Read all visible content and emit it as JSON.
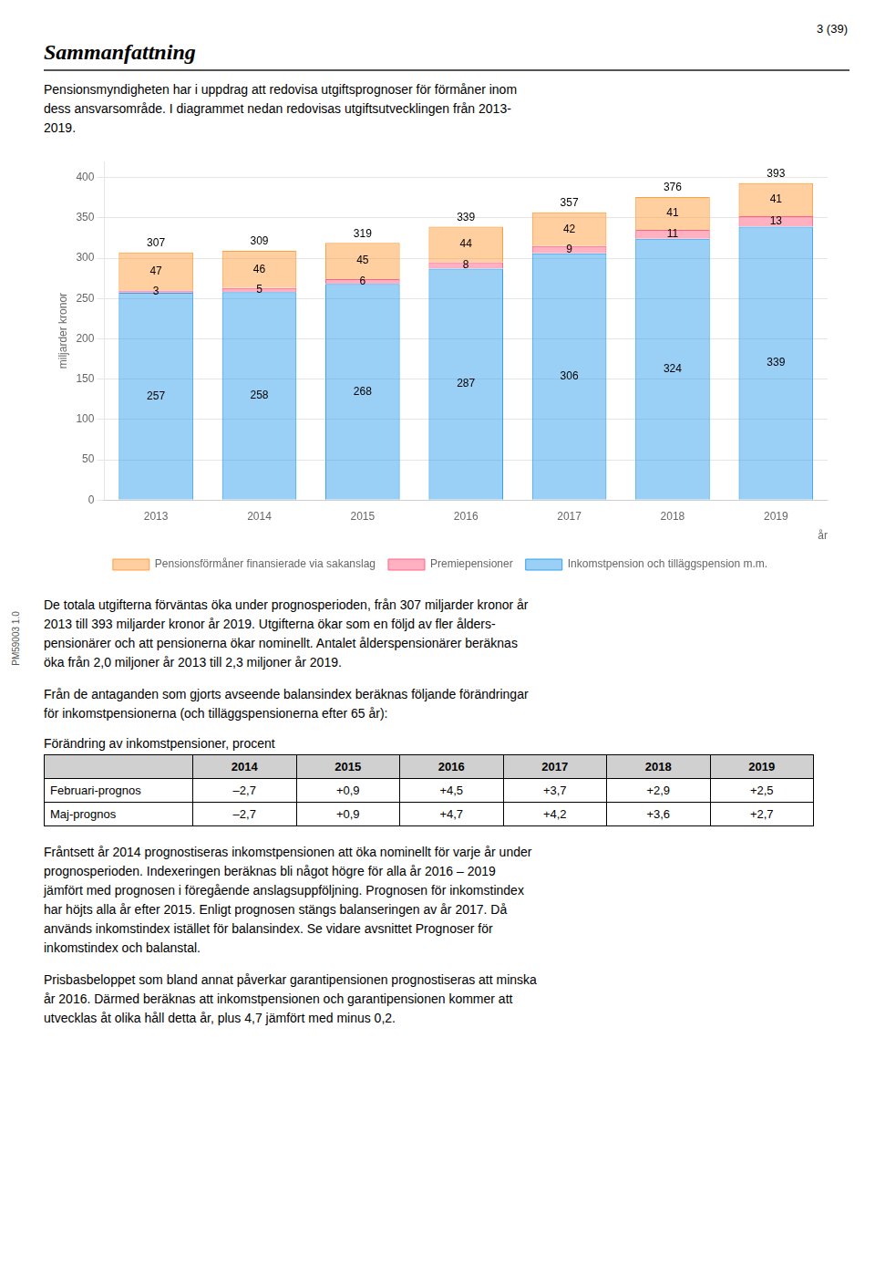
{
  "page_number": "3 (39)",
  "heading": "Sammanfattning",
  "intro": "Pensionsmyndigheten har i uppdrag att redovisa utgiftsprognoser för förmåner inom\ndess ansvarsområde. I diagrammet nedan redovisas utgiftsutvecklingen från 2013-\n2019.",
  "chart_data": {
    "type": "bar",
    "stacked": true,
    "categories": [
      "2013",
      "2014",
      "2015",
      "2016",
      "2017",
      "2018",
      "2019"
    ],
    "series": [
      {
        "name": "Inkomstpension och tilläggspension m.m.",
        "values": [
          257,
          258,
          268,
          287,
          306,
          324,
          339
        ]
      },
      {
        "name": "Premiepensioner",
        "values": [
          3,
          5,
          6,
          8,
          9,
          11,
          13
        ]
      },
      {
        "name": "Pensionsförmåner finansierade via sakanslag",
        "values": [
          47,
          46,
          45,
          44,
          42,
          41,
          41
        ]
      }
    ],
    "totals": [
      307,
      309,
      319,
      339,
      357,
      376,
      393
    ],
    "ylabel": "miljarder kronor",
    "xlabel": "år",
    "ylim": [
      0,
      420
    ],
    "yticks": [
      0,
      50,
      100,
      150,
      200,
      250,
      300,
      350,
      400
    ],
    "grid": true,
    "legend": "bottom",
    "data_labels": true
  },
  "paragraphs_before_table": [
    "De totala utgifterna förväntas öka under prognosperioden, från 307 miljarder kronor år\n2013 till 393 miljarder kronor år 2019. Utgifterna ökar som en följd av fler ålders-\npensionärer och att pensionerna ökar nominellt. Antalet ålderspensionärer beräknas\nöka från 2,0 miljoner år 2013 till 2,3 miljoner år 2019.",
    "Från de antaganden som gjorts avseende balansindex beräknas följande förändringar\nför inkomstpensionerna (och tilläggspensionerna efter 65 år):"
  ],
  "table": {
    "title": "Förändring av inkomstpensioner, procent",
    "headers": [
      "2014",
      "2015",
      "2016",
      "2017",
      "2018",
      "2019"
    ],
    "rows": [
      [
        "Februari-prognos",
        "–2,7",
        "+0,9",
        "+4,5",
        "+3,7",
        "+2,9",
        "+2,5"
      ],
      [
        "Maj-prognos",
        "–2,7",
        "+0,9",
        "+4,7",
        "+4,2",
        "+3,6",
        "+2,7"
      ]
    ]
  },
  "paragraphs_after_table": [
    "Fråntsett år 2014 prognostiseras inkomstpensionen att öka nominellt för varje år under\nprognosperioden. Indexeringen beräknas bli något högre för alla år 2016 – 2019\njämfört med prognosen i föregående anslagsuppföljning. Prognosen för inkomstindex\nhar höjts alla år efter 2015. Enligt prognosen stängs balanseringen av år 2017. Då\nanvänds inkomstindex istället för balansindex. Se vidare avsnittet Prognoser för\ninkomstindex och balanstal.",
    "Prisbasbeloppet som bland annat påverkar garantipensionen prognostiseras att minska\når 2016. Därmed beräknas att inkomstpensionen och garantipensionen kommer att\nutvecklas åt olika håll detta år, plus 4,7 jämfört med minus 0,2."
  ],
  "footer": "PM59003 1.0"
}
